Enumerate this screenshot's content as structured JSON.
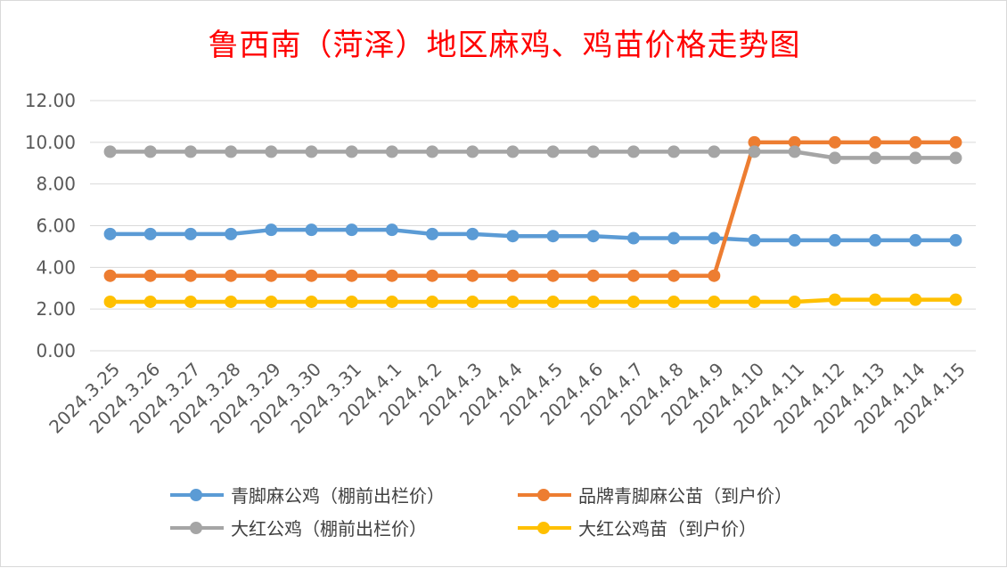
{
  "chart_data": {
    "type": "line",
    "title": "鲁西南（菏泽）地区麻鸡、鸡苗价格走势图",
    "xlabel": "",
    "ylabel": "",
    "ylim": [
      0,
      12
    ],
    "yticks": [
      "0.00",
      "2.00",
      "4.00",
      "6.00",
      "8.00",
      "10.00",
      "12.00"
    ],
    "grid": true,
    "legend_position": "bottom",
    "categories": [
      "2024.3.25",
      "2024.3.26",
      "2024.3.27",
      "2024.3.28",
      "2024.3.29",
      "2024.3.30",
      "2024.3.31",
      "2024.4.1",
      "2024.4.2",
      "2024.4.3",
      "2024.4.4",
      "2024.4.5",
      "2024.4.6",
      "2024.4.7",
      "2024.4.8",
      "2024.4.9",
      "2024.4.10",
      "2024.4.11",
      "2024.4.12",
      "2024.4.13",
      "2024.4.14",
      "2024.4.15"
    ],
    "series": [
      {
        "name": "青脚麻公鸡（棚前出栏价）",
        "color": "#5b9bd5",
        "values": [
          5.6,
          5.6,
          5.6,
          5.6,
          5.8,
          5.8,
          5.8,
          5.8,
          5.6,
          5.6,
          5.5,
          5.5,
          5.5,
          5.4,
          5.4,
          5.4,
          5.3,
          5.3,
          5.3,
          5.3,
          5.3,
          5.3
        ]
      },
      {
        "name": "品牌青脚麻公苗（到户价）",
        "color": "#ed7d31",
        "values": [
          3.6,
          3.6,
          3.6,
          3.6,
          3.6,
          3.6,
          3.6,
          3.6,
          3.6,
          3.6,
          3.6,
          3.6,
          3.6,
          3.6,
          3.6,
          3.6,
          10.0,
          10.0,
          10.0,
          10.0,
          10.0,
          10.0
        ]
      },
      {
        "name": "大红公鸡（棚前出栏价）",
        "color": "#a5a5a5",
        "values": [
          9.55,
          9.55,
          9.55,
          9.55,
          9.55,
          9.55,
          9.55,
          9.55,
          9.55,
          9.55,
          9.55,
          9.55,
          9.55,
          9.55,
          9.55,
          9.55,
          9.55,
          9.55,
          9.25,
          9.25,
          9.25,
          9.25
        ]
      },
      {
        "name": "大红公鸡苗（到户价）",
        "color": "#ffc000",
        "values": [
          2.35,
          2.35,
          2.35,
          2.35,
          2.35,
          2.35,
          2.35,
          2.35,
          2.35,
          2.35,
          2.35,
          2.35,
          2.35,
          2.35,
          2.35,
          2.35,
          2.35,
          2.35,
          2.45,
          2.45,
          2.45,
          2.45
        ]
      }
    ]
  }
}
